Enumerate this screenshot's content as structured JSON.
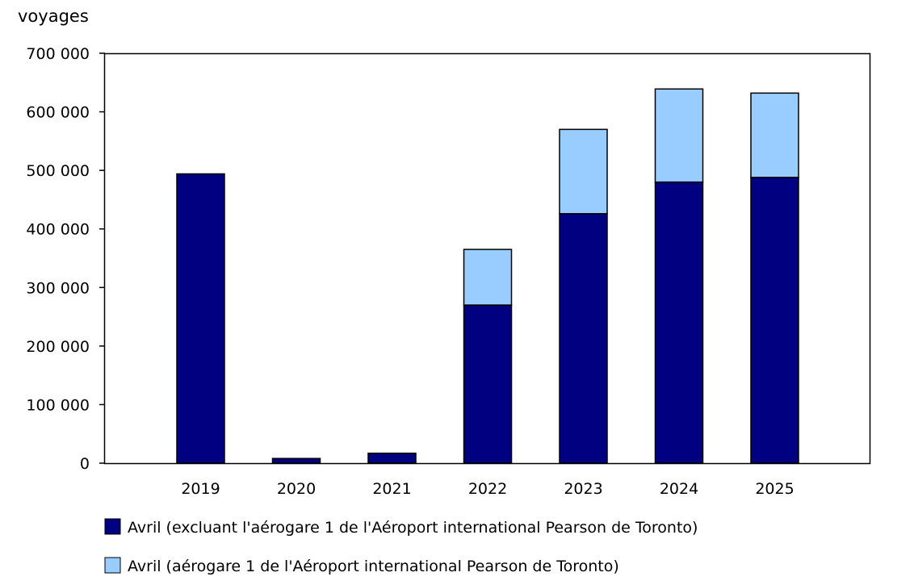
{
  "chart_data": {
    "type": "bar",
    "stacked": true,
    "title": "",
    "xlabel": "",
    "ylabel": "voyages",
    "categories": [
      "2019",
      "2020",
      "2021",
      "2022",
      "2023",
      "2024",
      "2025"
    ],
    "series": [
      {
        "name": "Avril (excluant l'aérogare 1 de l'Aéroport international Pearson de Toronto)",
        "color": "#000080",
        "values": [
          494000,
          8000,
          17000,
          270000,
          426000,
          480000,
          488000
        ]
      },
      {
        "name": "Avril (aérogare 1 de l'Aéroport international Pearson de Toronto)",
        "color": "#99CCFF",
        "values": [
          0,
          0,
          0,
          95000,
          144000,
          159000,
          144000
        ]
      }
    ],
    "ylim": [
      0,
      700000
    ],
    "yticks": [
      0,
      100000,
      200000,
      300000,
      400000,
      500000,
      600000,
      700000
    ],
    "ytick_labels": [
      "0",
      "100 000",
      "200 000",
      "300 000",
      "400 000",
      "500 000",
      "600 000",
      "700 000"
    ],
    "grid": false,
    "legend_position": "bottom-left"
  }
}
